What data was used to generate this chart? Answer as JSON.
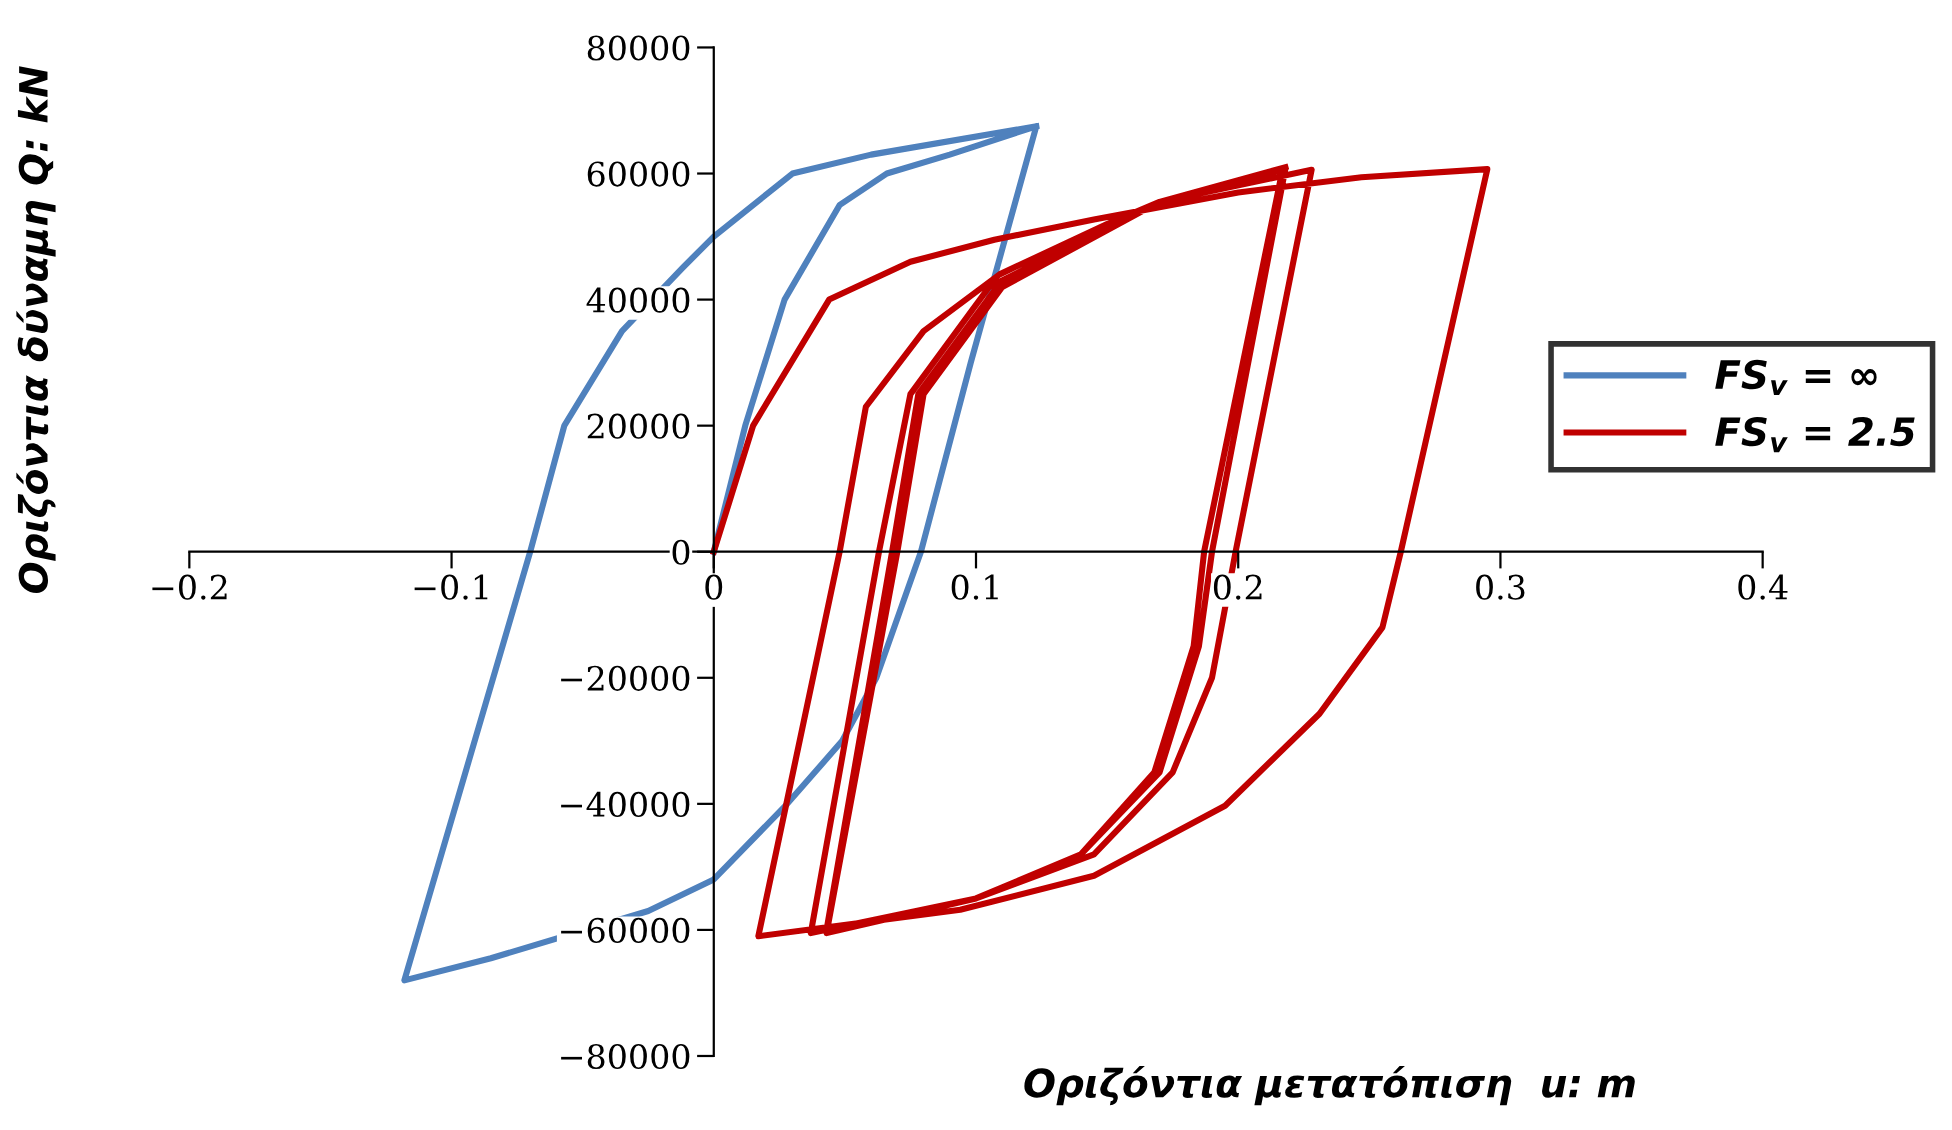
{
  "chart_data": {
    "type": "line",
    "xlabel": "Οριζόντια μετατόπιση  u: m",
    "ylabel": "Οριζόντια δύναμη Q: kN",
    "xlim": [
      -0.2,
      0.4
    ],
    "ylim": [
      -80000,
      80000
    ],
    "xticks": [
      {
        "value": -0.2,
        "label": "−0.2"
      },
      {
        "value": -0.1,
        "label": "−0.1"
      },
      0,
      0.1,
      0.2,
      0.3,
      0.4
    ],
    "yticks": [
      {
        "value": -80000,
        "label": "−80000"
      },
      {
        "value": -60000,
        "label": "−60000"
      },
      {
        "value": -40000,
        "label": "−40000"
      },
      {
        "value": -20000,
        "label": "−20000"
      },
      0,
      20000,
      40000,
      60000,
      80000
    ],
    "grid": false,
    "legend": "right",
    "marker": "none",
    "line_style": "solid",
    "series": [
      {
        "name": "FS$_{v}$ = ∞",
        "color": "#4f81bd",
        "x": [
          0,
          0.012,
          0.027,
          0.048,
          0.066,
          0.09,
          0.123,
          0.098,
          0.079,
          0.062,
          0.049,
          0.028,
          0.0,
          -0.025,
          -0.085,
          -0.118,
          -0.07,
          -0.057,
          -0.035,
          -0.012,
          0,
          0.03,
          0.06,
          0.123
        ],
        "values": [
          0,
          20000,
          40000,
          55000,
          60000,
          63000,
          67500,
          30000,
          0,
          -20000,
          -30000,
          -40000,
          -52000,
          -57000,
          -64500,
          -68000,
          0,
          20000,
          35000,
          45000,
          50000,
          60000,
          63000,
          67500
        ]
      },
      {
        "name": "FS$_{v}$ = 2.5",
        "color": "#c00000",
        "x": [
          0,
          0.015,
          0.044,
          0.075,
          0.107,
          0.145,
          0.2,
          0.247,
          0.295,
          0.262,
          0.255,
          0.231,
          0.195,
          0.145,
          0.094,
          0.017,
          0.048,
          0.058,
          0.08,
          0.109,
          0.15,
          0.17,
          0.218,
          0.19,
          0.185,
          0.17,
          0.14,
          0.1,
          0.043,
          0.07,
          0.08,
          0.11,
          0.17,
          0.228,
          0.199,
          0.19,
          0.175,
          0.145,
          0.1,
          0.037,
          0.063,
          0.075,
          0.105,
          0.17,
          0.217,
          0.187,
          0.183,
          0.168,
          0.14,
          0.1,
          0.043,
          0.068,
          0.078,
          0.108,
          0.17,
          0.218
        ],
        "values": [
          0,
          20000,
          40000,
          46000,
          49500,
          52700,
          57000,
          59400,
          60700,
          0,
          -12000,
          -25700,
          -40300,
          -51400,
          -56800,
          -61000,
          0,
          23000,
          35000,
          44000,
          52000,
          55500,
          60800,
          0,
          -15000,
          -35000,
          -48000,
          -55000,
          -60500,
          0,
          25000,
          42000,
          55500,
          60600,
          0,
          -20000,
          -35000,
          -48000,
          -55000,
          -60500,
          0,
          25000,
          42000,
          55500,
          60800,
          0,
          -15000,
          -35000,
          -48000,
          -55000,
          -60000,
          0,
          25000,
          42000,
          55500,
          61000
        ]
      }
    ]
  }
}
